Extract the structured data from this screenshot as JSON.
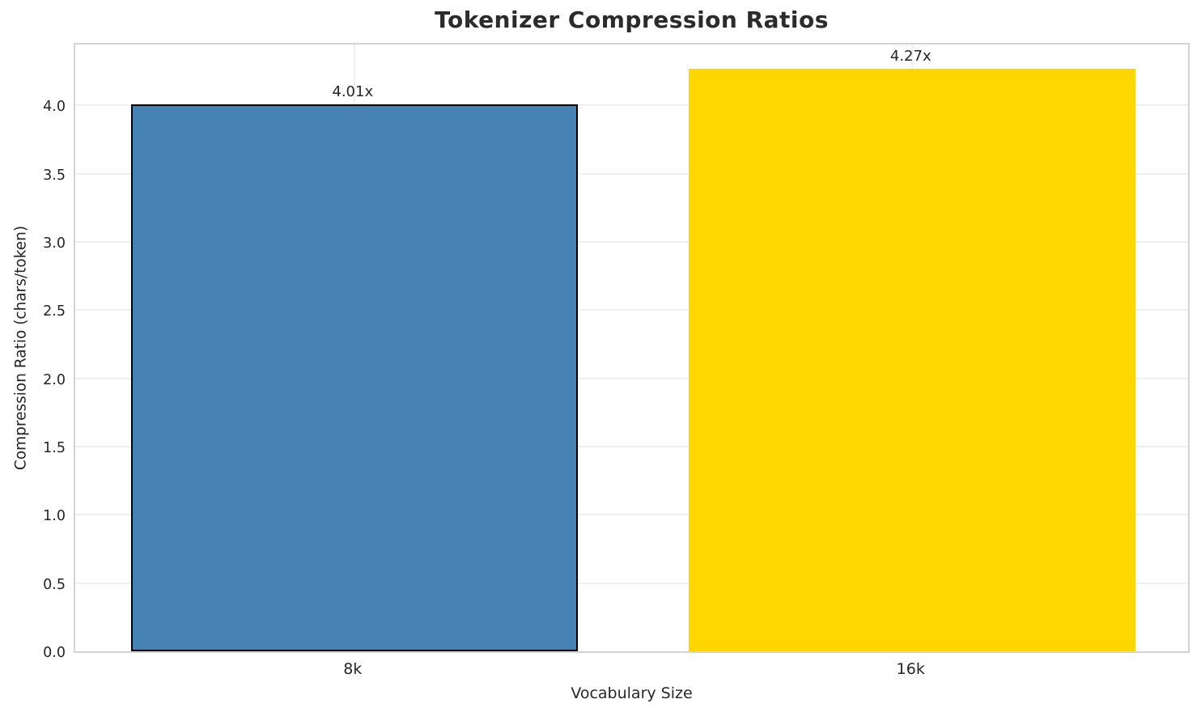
{
  "chart_data": {
    "type": "bar",
    "title": "Tokenizer Compression Ratios",
    "xlabel": "Vocabulary Size",
    "ylabel": "Compression Ratio (chars/token)",
    "categories": [
      "8k",
      "16k"
    ],
    "values": [
      4.01,
      4.27
    ],
    "bar_labels": [
      "4.01x",
      "4.27x"
    ],
    "bar_colors": [
      "#4682B4",
      "#FFD700"
    ],
    "bar_edge_colors": [
      "#000000",
      "none"
    ],
    "bar_width_fraction": 0.4,
    "ylim": [
      0,
      4.47
    ],
    "yticks": [
      0.0,
      0.5,
      1.0,
      1.5,
      2.0,
      2.5,
      3.0,
      3.5,
      4.0
    ],
    "ytick_labels": [
      "0.0",
      "0.5",
      "1.0",
      "1.5",
      "2.0",
      "2.5",
      "3.0",
      "3.5",
      "4.0"
    ],
    "grid": true,
    "legend": "none"
  },
  "style_colors": {
    "grid_color": "#efefef",
    "spine_color": "#d4d4d4",
    "text_color": "#262626",
    "title_color": "#2b2b2b",
    "background": "#ffffff"
  }
}
